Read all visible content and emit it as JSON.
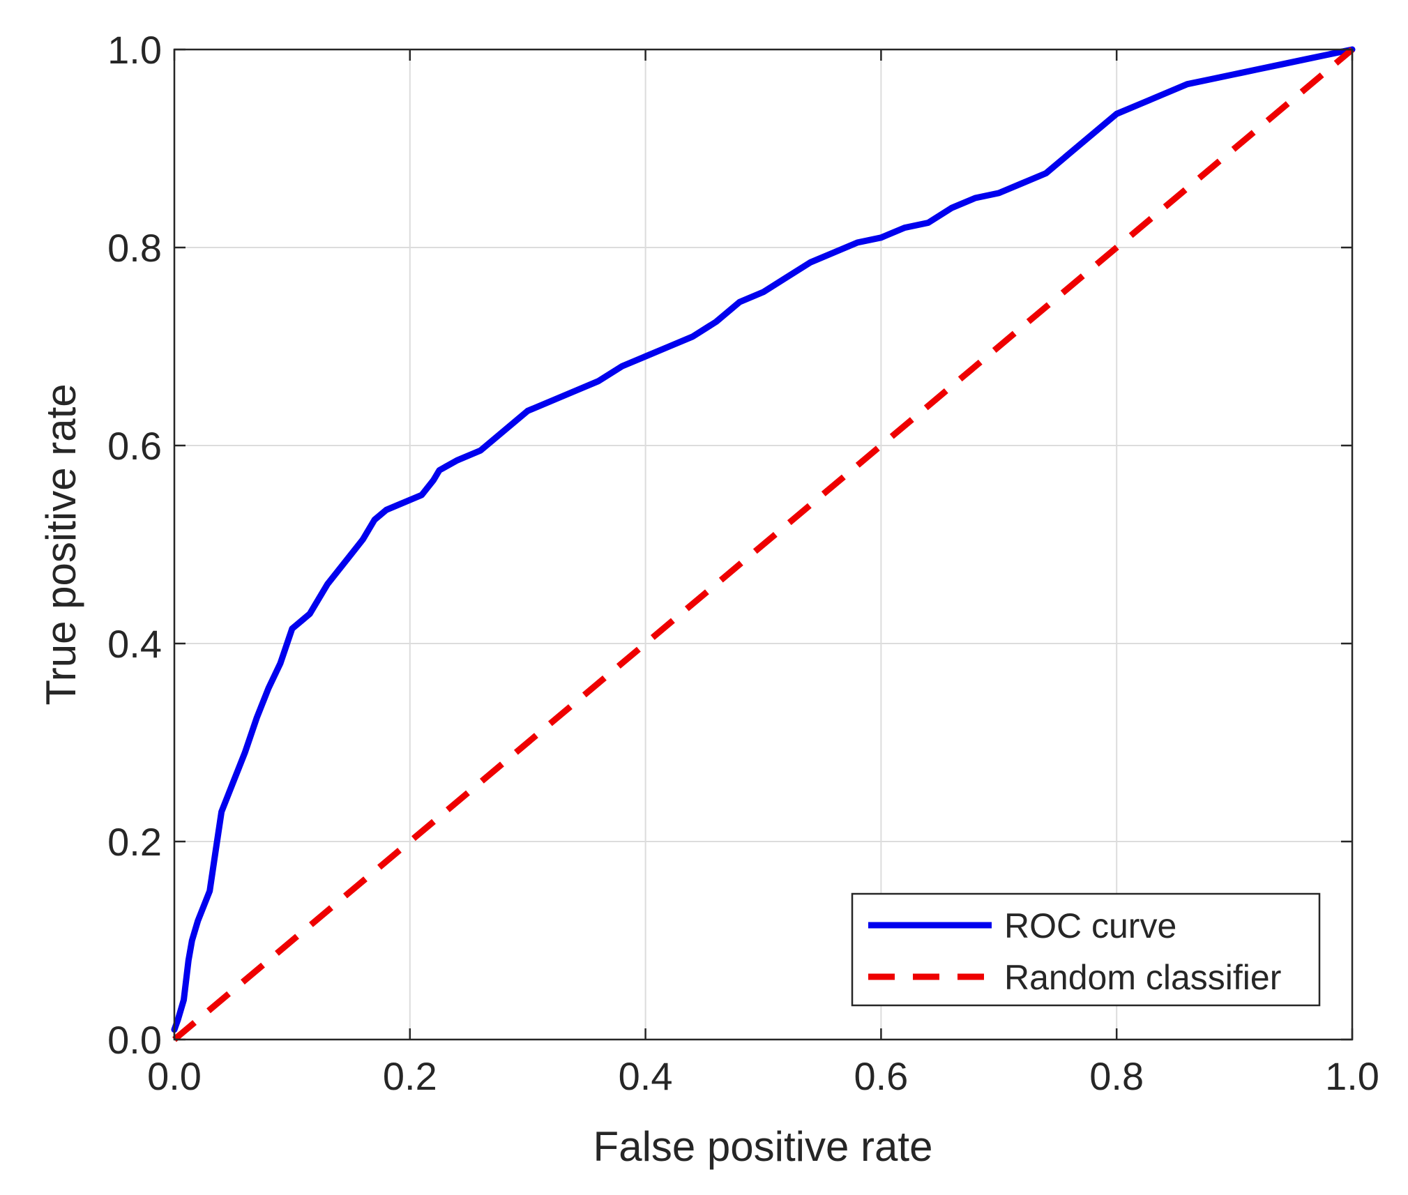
{
  "chart_data": {
    "type": "line",
    "title": "",
    "xlabel": "False positive rate",
    "ylabel": "True positive rate",
    "xlim": [
      0,
      1
    ],
    "ylim": [
      0,
      1
    ],
    "xticks": [
      0,
      0.2,
      0.4,
      0.6,
      0.8,
      1
    ],
    "yticks": [
      0,
      0.2,
      0.4,
      0.6,
      0.8,
      1
    ],
    "xtick_labels": [
      "0.0",
      "0.2",
      "0.4",
      "0.6",
      "0.8",
      "1.0"
    ],
    "ytick_labels": [
      "0.0",
      "0.2",
      "0.4",
      "0.6",
      "0.8",
      "1.0"
    ],
    "grid": true,
    "legend": {
      "placement": "bottom-right",
      "box": true
    },
    "series": [
      {
        "name": "ROC curve",
        "color": "#0000ee",
        "style": "solid",
        "x": [
          0.0,
          0.003,
          0.008,
          0.012,
          0.015,
          0.02,
          0.03,
          0.035,
          0.04,
          0.045,
          0.05,
          0.06,
          0.07,
          0.08,
          0.09,
          0.1,
          0.11,
          0.115,
          0.13,
          0.15,
          0.16,
          0.17,
          0.18,
          0.19,
          0.21,
          0.22,
          0.225,
          0.24,
          0.26,
          0.28,
          0.3,
          0.32,
          0.34,
          0.36,
          0.38,
          0.4,
          0.42,
          0.44,
          0.46,
          0.48,
          0.5,
          0.52,
          0.54,
          0.56,
          0.58,
          0.6,
          0.62,
          0.64,
          0.66,
          0.68,
          0.7,
          0.72,
          0.74,
          0.76,
          0.78,
          0.8,
          0.82,
          0.84,
          0.86,
          0.88,
          0.9,
          0.92,
          0.94,
          0.96,
          0.98,
          1.0
        ],
        "y": [
          0.01,
          0.02,
          0.04,
          0.08,
          0.1,
          0.12,
          0.15,
          0.19,
          0.23,
          0.245,
          0.26,
          0.29,
          0.325,
          0.355,
          0.38,
          0.415,
          0.425,
          0.43,
          0.46,
          0.49,
          0.505,
          0.525,
          0.535,
          0.54,
          0.55,
          0.565,
          0.575,
          0.585,
          0.595,
          0.615,
          0.635,
          0.645,
          0.655,
          0.665,
          0.68,
          0.69,
          0.7,
          0.71,
          0.725,
          0.745,
          0.755,
          0.77,
          0.785,
          0.795,
          0.805,
          0.81,
          0.82,
          0.825,
          0.84,
          0.85,
          0.855,
          0.865,
          0.875,
          0.895,
          0.915,
          0.935,
          0.945,
          0.955,
          0.965,
          0.97,
          0.975,
          0.98,
          0.985,
          0.99,
          0.995,
          1.0
        ]
      },
      {
        "name": "Random classifier",
        "color": "#ee0000",
        "style": "dashed",
        "x": [
          0,
          1
        ],
        "y": [
          0,
          1
        ]
      }
    ]
  }
}
